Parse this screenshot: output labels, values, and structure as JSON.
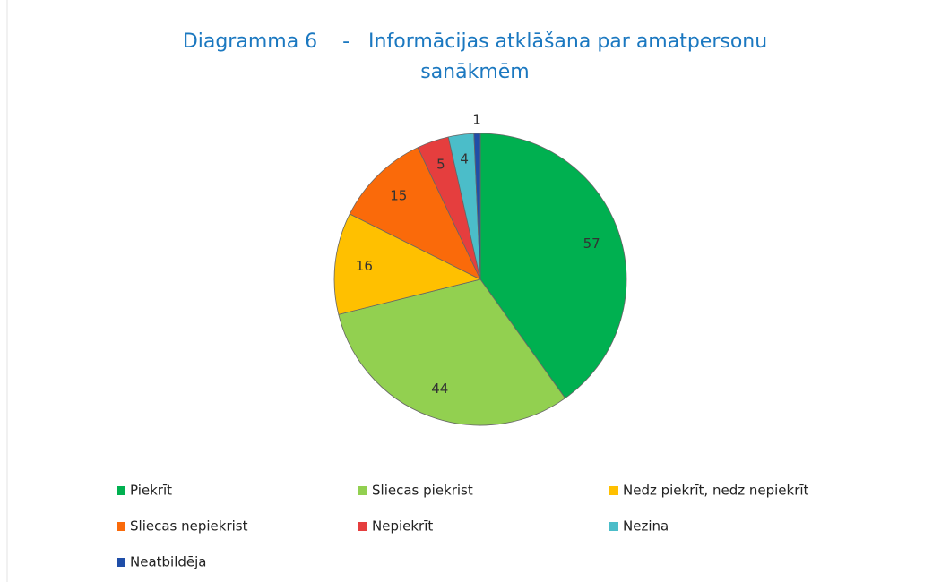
{
  "chart_data": {
    "type": "pie",
    "title": "Diagramma 6    -   Informācijas atklāšana par amatpersonu sanākmēm",
    "categories": [
      "Piekrīt",
      "Sliecas piekrist",
      "Nedz piekrīt, nedz nepiekrīt",
      "Sliecas nepiekrist",
      "Nepiekrīt",
      "Nezina",
      "Neatbildēja"
    ],
    "values": [
      57,
      44,
      16,
      15,
      5,
      4,
      1
    ],
    "colors": [
      "#00b050",
      "#92d050",
      "#ffc000",
      "#fa6a0a",
      "#e53e3e",
      "#4bbdc9",
      "#1f4ea8"
    ],
    "legend": "bottom"
  }
}
